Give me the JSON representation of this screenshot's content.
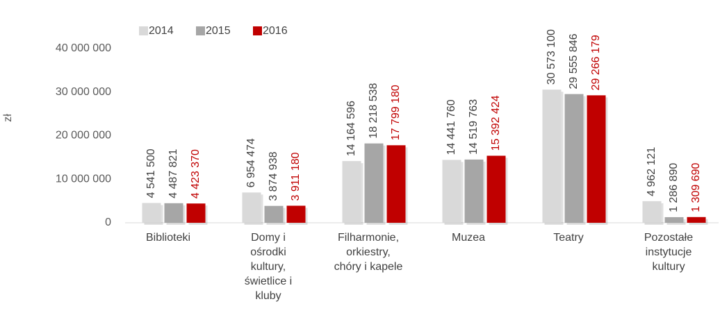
{
  "chart_data": {
    "type": "bar",
    "y_label": "zł",
    "categories": [
      "Biblioteki",
      "Domy i ośrodki kultury, świetlice i kluby",
      "Filharmonie, orkiestry, chóry i kapele",
      "Muzea",
      "Teatry",
      "Pozostałe instytucje kultury"
    ],
    "series": [
      {
        "name": "2014",
        "color": "#d9d9d9",
        "label_color": "#404040",
        "values": [
          4541500,
          6954474,
          14164596,
          14441760,
          30573100,
          4962121
        ],
        "value_labels": [
          "4 541 500",
          "6 954 474",
          "14 164 596",
          "14 441 760",
          "30 573 100",
          "4 962 121"
        ]
      },
      {
        "name": "2015",
        "color": "#a6a6a6",
        "label_color": "#404040",
        "values": [
          4487821,
          3874938,
          18218538,
          14519763,
          29555846,
          1286890
        ],
        "value_labels": [
          "4 487 821",
          "3 874 938",
          "18 218 538",
          "14 519 763",
          "29 555 846",
          "1 286 890"
        ]
      },
      {
        "name": "2016",
        "color": "#c00000",
        "label_color": "#c00000",
        "values": [
          4423370,
          3911180,
          17799180,
          15392424,
          29266179,
          1309690
        ],
        "value_labels": [
          "4 423 370",
          "3 911 180",
          "17 799 180",
          "15 392 424",
          "29 266 179",
          "1 309 690"
        ]
      }
    ],
    "ylim": [
      0,
      40000000
    ],
    "yticks": [
      0,
      {
        "value": 10000000,
        "label": "10 000 000"
      },
      {
        "value": 20000000,
        "label": "20 000 000"
      },
      {
        "value": 30000000,
        "label": "30 000 000"
      },
      {
        "value": 40000000,
        "label": "40 000 000"
      }
    ],
    "grid": false,
    "legend": "top"
  }
}
